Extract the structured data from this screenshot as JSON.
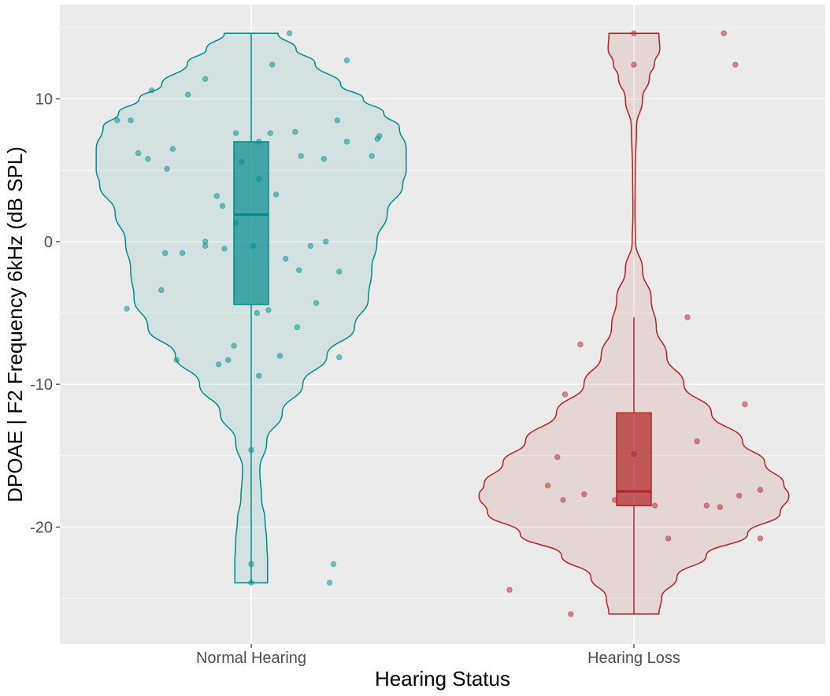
{
  "chart_data": {
    "type": "violin",
    "xlabel": "Hearing Status",
    "ylabel": "DPOAE | F2 Frequency 6kHz (dB SPL)",
    "ylim": [
      -28.2,
      16.6
    ],
    "yticks": [
      10,
      0,
      -10,
      -20
    ],
    "categories": [
      "Normal Hearing",
      "Hearing Loss"
    ],
    "grid": true,
    "legend": "none",
    "groups": [
      {
        "name": "Normal Hearing",
        "line_color": "#008b8b",
        "fill_color": "#008b8b",
        "box": {
          "q1": -4.4,
          "median": 1.9,
          "q3": 7.0,
          "whisker_low": -23.9,
          "whisker_high": 14.6
        },
        "density": [
          [
            14.6,
            0.155
          ],
          [
            13.5,
            0.26
          ],
          [
            12.5,
            0.37
          ],
          [
            11.0,
            0.52
          ],
          [
            10.0,
            0.65
          ],
          [
            9.0,
            0.77
          ],
          [
            8.0,
            0.86
          ],
          [
            6.5,
            0.9
          ],
          [
            5.0,
            0.9
          ],
          [
            4.0,
            0.88
          ],
          [
            2.0,
            0.79
          ],
          [
            0.0,
            0.73
          ],
          [
            -2.0,
            0.7
          ],
          [
            -4.0,
            0.68
          ],
          [
            -6.0,
            0.6
          ],
          [
            -8.0,
            0.44
          ],
          [
            -10.0,
            0.3
          ],
          [
            -12.0,
            0.18
          ],
          [
            -14.0,
            0.09
          ],
          [
            -16.0,
            0.05
          ],
          [
            -18.0,
            0.06
          ],
          [
            -19.5,
            0.08
          ],
          [
            -21.0,
            0.09
          ],
          [
            -22.5,
            0.095
          ],
          [
            -23.9,
            0.095
          ]
        ],
        "points": [
          [
            14.6,
            0.2
          ],
          [
            12.4,
            0.11
          ],
          [
            12.7,
            0.5
          ],
          [
            11.4,
            -0.24
          ],
          [
            10.6,
            -0.52
          ],
          [
            10.3,
            -0.33
          ],
          [
            8.5,
            -0.7
          ],
          [
            8.5,
            -0.63
          ],
          [
            8.5,
            0.45
          ],
          [
            7.6,
            -0.08
          ],
          [
            7.6,
            0.1
          ],
          [
            7.7,
            0.23
          ],
          [
            7.0,
            0.04
          ],
          [
            7.0,
            0.5
          ],
          [
            7.2,
            0.66
          ],
          [
            7.4,
            0.67
          ],
          [
            6.5,
            -0.41
          ],
          [
            6.2,
            -0.59
          ],
          [
            5.8,
            -0.54
          ],
          [
            6.0,
            0.26
          ],
          [
            5.8,
            0.38
          ],
          [
            6.0,
            0.63
          ],
          [
            5.1,
            -0.44
          ],
          [
            5.6,
            -0.05
          ],
          [
            4.4,
            0.04
          ],
          [
            3.3,
            0.13
          ],
          [
            3.2,
            -0.18
          ],
          [
            2.5,
            -0.15
          ],
          [
            1.3,
            -0.08
          ],
          [
            0.0,
            -0.24
          ],
          [
            -0.3,
            -0.24
          ],
          [
            -0.3,
            0.01
          ],
          [
            -0.5,
            -0.14
          ],
          [
            -0.3,
            0.31
          ],
          [
            0.0,
            0.39
          ],
          [
            -0.8,
            -0.45
          ],
          [
            -0.8,
            -0.36
          ],
          [
            -1.2,
            0.18
          ],
          [
            -2.0,
            0.25
          ],
          [
            -2.1,
            0.46
          ],
          [
            -3.4,
            -0.47
          ],
          [
            -4.3,
            0.34
          ],
          [
            -4.7,
            -0.65
          ],
          [
            -4.8,
            0.09
          ],
          [
            -5.0,
            0.03
          ],
          [
            -6.0,
            0.24
          ],
          [
            -7.3,
            -0.09
          ],
          [
            -8.0,
            0.15
          ],
          [
            -8.1,
            0.46
          ],
          [
            -8.3,
            -0.39
          ],
          [
            -8.3,
            -0.12
          ],
          [
            -8.6,
            -0.17
          ],
          [
            -9.4,
            0.04
          ],
          [
            -14.6,
            0.0
          ],
          [
            -22.6,
            0.0
          ],
          [
            -22.6,
            0.43
          ],
          [
            -23.9,
            0.0
          ],
          [
            -23.9,
            0.41
          ]
        ]
      },
      {
        "name": "Hearing Loss",
        "line_color": "#b22222",
        "fill_color": "#b22222",
        "box": {
          "q1": -18.5,
          "median": -17.5,
          "q3": -12.0,
          "whisker_low": -26.1,
          "whisker_high": -5.3
        },
        "density": [
          [
            14.6,
            0.145
          ],
          [
            13.5,
            0.15
          ],
          [
            12.5,
            0.12
          ],
          [
            11.5,
            0.09
          ],
          [
            10.0,
            0.05
          ],
          [
            8.0,
            0.015
          ],
          [
            5.0,
            0.008
          ],
          [
            2.0,
            0.006
          ],
          [
            0.0,
            0.01
          ],
          [
            -2.0,
            0.05
          ],
          [
            -4.0,
            0.1
          ],
          [
            -6.0,
            0.13
          ],
          [
            -8.0,
            0.19
          ],
          [
            -10.0,
            0.29
          ],
          [
            -12.0,
            0.45
          ],
          [
            -14.0,
            0.63
          ],
          [
            -15.5,
            0.76
          ],
          [
            -17.0,
            0.87
          ],
          [
            -17.8,
            0.9
          ],
          [
            -19.0,
            0.85
          ],
          [
            -20.5,
            0.66
          ],
          [
            -22.0,
            0.42
          ],
          [
            -23.5,
            0.25
          ],
          [
            -25.0,
            0.16
          ],
          [
            -26.1,
            0.145
          ]
        ],
        "points": [
          [
            14.6,
            0.0
          ],
          [
            14.6,
            0.47
          ],
          [
            12.4,
            0.0
          ],
          [
            12.4,
            0.53
          ],
          [
            -5.3,
            0.28
          ],
          [
            -7.2,
            -0.28
          ],
          [
            -10.7,
            -0.36
          ],
          [
            -11.4,
            0.58
          ],
          [
            -14.0,
            0.33
          ],
          [
            -14.9,
            0.0
          ],
          [
            -15.1,
            -0.4
          ],
          [
            -17.1,
            -0.45
          ],
          [
            -17.4,
            0.66
          ],
          [
            -17.7,
            -0.26
          ],
          [
            -17.8,
            0.55
          ],
          [
            -18.1,
            -0.37
          ],
          [
            -18.1,
            -0.1
          ],
          [
            -18.5,
            0.11
          ],
          [
            -18.5,
            0.38
          ],
          [
            -18.6,
            0.45
          ],
          [
            -20.8,
            0.18
          ],
          [
            -20.8,
            0.66
          ],
          [
            -24.4,
            -0.65
          ],
          [
            -26.1,
            -0.33
          ]
        ]
      }
    ]
  }
}
